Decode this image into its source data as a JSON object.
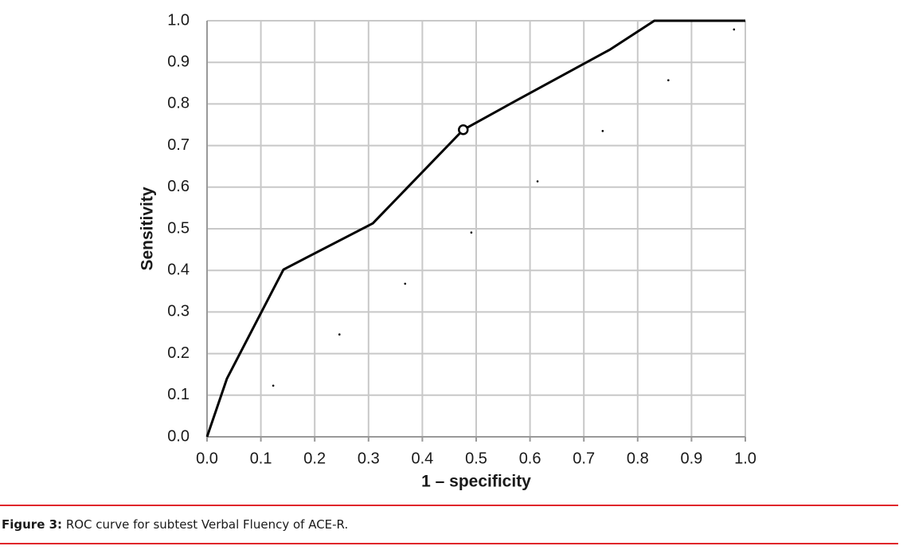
{
  "chart_data": {
    "type": "line",
    "xlabel": "1 – specificity",
    "ylabel": "Sensitivity",
    "xlim": [
      0,
      1
    ],
    "ylim": [
      0,
      1
    ],
    "xticks": [
      {
        "value": 0,
        "label": "0.0"
      },
      0.1,
      0.2,
      0.3,
      0.4,
      0.5,
      0.6,
      0.7,
      0.8,
      0.9,
      {
        "value": 1,
        "label": "1.0"
      }
    ],
    "yticks": [
      {
        "value": 0,
        "label": "0.0"
      },
      0.1,
      0.2,
      0.3,
      0.4,
      0.5,
      0.6,
      0.7,
      0.8,
      0.9,
      {
        "value": 1,
        "label": "1.0"
      }
    ],
    "grid": true,
    "series": [
      {
        "style": "line",
        "color": "#000000",
        "x": [
          0,
          0.037,
          0.142,
          0.308,
          0.476,
          0.577,
          0.749,
          0.831,
          1.0
        ],
        "values": [
          0,
          0.14,
          0.402,
          0.513,
          0.738,
          0.81,
          0.931,
          1.0,
          1.0
        ]
      },
      {
        "style": "dots",
        "color": "#000000",
        "x": [
          0.123,
          0.246,
          0.368,
          0.491,
          0.614,
          0.735,
          0.857,
          0.979
        ],
        "values": [
          0.123,
          0.246,
          0.368,
          0.491,
          0.614,
          0.735,
          0.857,
          0.979
        ]
      }
    ],
    "highlight": {
      "x": 0.476,
      "y": 0.738
    }
  },
  "caption": {
    "label": "Figure 3:",
    "text": "ROC curve for subtest Verbal Fluency of ACE-R."
  }
}
